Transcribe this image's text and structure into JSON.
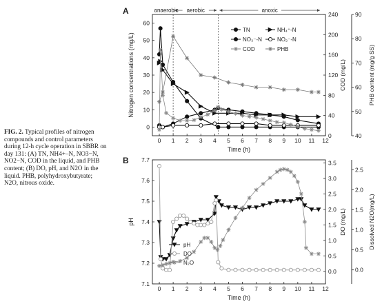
{
  "caption": {
    "label": "FIG. 2.",
    "text": "Typical profiles of nitrogen compounds and control parameters during 12-h cycle operation in SBBR on day 131: (A) TN, NH4+–N, NO3−N, NO2−N, COD in the liquid, and PHB content; (B) DO, pH, and N2O in the liquid. PHB, polyhydroxybutyrate; N2O, nitrous oxide."
  },
  "chart_data": [
    {
      "panel": "A",
      "type": "line",
      "phases": [
        {
          "name": "anaerobic",
          "x_start": 0,
          "x_end": 1
        },
        {
          "name": "aerobic",
          "x_start": 1,
          "x_end": 4.25
        },
        {
          "name": "anoxic",
          "x_start": 4.25,
          "x_end": 11.7
        }
      ],
      "xlabel": "Time (h)",
      "xlim": [
        -0.5,
        12
      ],
      "xticks": [
        0,
        1,
        2,
        3,
        4,
        5,
        6,
        7,
        8,
        9,
        10,
        11,
        12
      ],
      "y_left": {
        "label": "Nitrogen concentrations (mg/L)",
        "lim": [
          -5,
          65
        ],
        "ticks": [
          0,
          10,
          20,
          30,
          40,
          50,
          60
        ]
      },
      "y_right1": {
        "label": "COD (mg/L)",
        "lim": [
          0,
          240
        ],
        "ticks": [
          0,
          40,
          80,
          120,
          160,
          200,
          240
        ]
      },
      "y_right2": {
        "label": "PHB content (mg/g SS)",
        "lim": [
          40,
          90
        ],
        "ticks": [
          40,
          50,
          60,
          70,
          80,
          90
        ]
      },
      "legend": [
        "TN",
        "NH4+-N",
        "NO3-N",
        "NO2-N",
        "COD",
        "PHB"
      ],
      "series": [
        {
          "name": "TN",
          "axis": "left",
          "marker": "half",
          "x": [
            0,
            0.08,
            0.25,
            1,
            2,
            3,
            4.25,
            5,
            6,
            7,
            8,
            9,
            10,
            11.5
          ],
          "values": [
            42,
            57,
            36,
            26,
            15,
            5,
            0,
            0,
            0,
            0,
            0,
            0,
            0,
            0
          ]
        },
        {
          "name": "NH4+-N",
          "axis": "left",
          "marker": "tri",
          "x": [
            0,
            0.08,
            0.25,
            1,
            2,
            3,
            4,
            5,
            6,
            7,
            8,
            9,
            10,
            11.5
          ],
          "values": [
            37,
            38,
            33,
            25,
            20,
            12,
            8,
            8,
            8,
            7,
            7,
            7,
            6,
            6
          ]
        },
        {
          "name": "NO3-N",
          "axis": "left",
          "marker": "half",
          "x": [
            0,
            0.25,
            1,
            2,
            3,
            4,
            4.25,
            5,
            6,
            7,
            8,
            9,
            10,
            11.5
          ],
          "values": [
            1,
            0,
            2,
            6,
            8,
            10,
            11,
            10,
            9,
            8,
            7,
            6,
            4,
            2
          ]
        },
        {
          "name": "NO2-N",
          "axis": "left",
          "marker": "circle",
          "x": [
            0,
            0.25,
            1,
            2,
            3,
            4,
            5,
            6,
            7,
            8,
            9,
            10,
            11.5
          ],
          "values": [
            0,
            0,
            1,
            1,
            1,
            2,
            2,
            2,
            2,
            1,
            1,
            1,
            1
          ]
        },
        {
          "name": "COD",
          "axis": "right1",
          "marker": "star",
          "x": [
            0,
            0.08,
            0.25,
            0.5,
            1,
            1.5,
            2,
            2.5,
            3,
            3.5,
            4,
            4.25,
            4.5,
            5,
            5.5,
            6,
            6.5,
            7,
            7.5,
            8,
            8.5,
            9,
            9.5,
            10,
            10.5,
            11,
            11.5
          ],
          "values": [
            12,
            170,
            80,
            45,
            35,
            30,
            30,
            31,
            37,
            42,
            50,
            57,
            52,
            48,
            44,
            40,
            38,
            36,
            33,
            30,
            27,
            26,
            22,
            18,
            14,
            12,
            10
          ]
        },
        {
          "name": "PHB",
          "axis": "right2",
          "marker": "star",
          "x": [
            0,
            0.25,
            1,
            2,
            3,
            4,
            5,
            6,
            7,
            8,
            9,
            10,
            11,
            11.5
          ],
          "values": [
            54,
            58,
            81,
            72,
            65,
            64,
            62,
            61,
            60,
            60,
            59,
            59,
            58,
            58
          ]
        }
      ]
    },
    {
      "panel": "B",
      "type": "line",
      "xlabel": "Time (h)",
      "xlim": [
        -0.5,
        12
      ],
      "xticks": [
        0,
        1,
        2,
        3,
        4,
        5,
        6,
        7,
        8,
        9,
        10,
        11,
        12
      ],
      "y_left": {
        "label": "pH",
        "lim": [
          7.1,
          7.7
        ],
        "ticks": [
          7.1,
          7.2,
          7.3,
          7.4,
          7.5,
          7.6,
          7.7
        ]
      },
      "y_right1": {
        "label": "DO (mg/L)",
        "lim": [
          -0.4,
          3.6
        ],
        "ticks": [
          0.0,
          0.5,
          1.0,
          1.5,
          2.0,
          2.5,
          3.0,
          3.5
        ]
      },
      "y_right2": {
        "label": "Dissolved N2O(mg/L)",
        "lim": [
          -0.35,
          2.75
        ],
        "ticks": [
          0.0,
          0.5,
          1.0,
          1.5,
          2.0,
          2.5
        ]
      },
      "legend": [
        "pH",
        "DO",
        "N2O"
      ],
      "series": [
        {
          "name": "pH",
          "axis": "left",
          "marker": "tri-down",
          "x": [
            0,
            0.1,
            0.25,
            0.5,
            0.75,
            1,
            1.25,
            1.5,
            2,
            2.5,
            3,
            3.5,
            4,
            4.1,
            4.3,
            4.5,
            5,
            5.5,
            6,
            6.5,
            7,
            7.5,
            8,
            8.5,
            9,
            9.5,
            10,
            10.25,
            10.5,
            11,
            11.5
          ],
          "values": [
            7.4,
            7.23,
            7.22,
            7.22,
            7.24,
            7.32,
            7.36,
            7.38,
            7.39,
            7.4,
            7.41,
            7.41,
            7.44,
            7.52,
            7.5,
            7.48,
            7.47,
            7.47,
            7.46,
            7.47,
            7.47,
            7.48,
            7.49,
            7.5,
            7.5,
            7.5,
            7.51,
            7.51,
            7.48,
            7.46,
            7.46
          ]
        },
        {
          "name": "DO",
          "axis": "right1",
          "marker": "circle",
          "x": [
            0,
            0.1,
            0.25,
            0.5,
            0.75,
            1,
            1.25,
            1.5,
            1.75,
            2,
            2.25,
            2.5,
            2.75,
            3,
            3.25,
            3.5,
            3.75,
            4,
            4.1,
            4.25,
            4.5,
            5,
            5.5,
            6,
            6.5,
            7,
            7.5,
            8,
            8.5,
            9,
            9.5,
            10,
            10.5,
            11,
            11.5
          ],
          "values": [
            3.4,
            0.4,
            0.1,
            0.05,
            0.05,
            1.6,
            1.7,
            1.8,
            1.8,
            1.7,
            1.6,
            1.55,
            1.5,
            1.5,
            1.5,
            1.55,
            1.6,
            2.2,
            2.3,
            0.3,
            0.1,
            0.05,
            0.05,
            0.05,
            0.05,
            0.05,
            0.05,
            0.05,
            0.05,
            0.05,
            0.05,
            0.05,
            0.05,
            0.05,
            0.05
          ]
        },
        {
          "name": "N2O",
          "axis": "right2",
          "marker": "star",
          "x": [
            0,
            0.25,
            0.5,
            0.75,
            1,
            1.5,
            2,
            2.5,
            3,
            3.25,
            3.5,
            3.75,
            4,
            4.2,
            4.4,
            4.6,
            5,
            5.5,
            6,
            6.5,
            7,
            7.5,
            8,
            8.5,
            8.75,
            9,
            9.25,
            9.5,
            9.75,
            10,
            10.25,
            10.5,
            10.6,
            11,
            11.5
          ],
          "values": [
            0.1,
            0.12,
            0.15,
            0.17,
            0.2,
            0.22,
            0.3,
            0.45,
            0.7,
            0.8,
            0.8,
            0.7,
            0.55,
            0.5,
            0.6,
            0.75,
            1.0,
            1.3,
            1.55,
            1.8,
            2.0,
            2.15,
            2.3,
            2.45,
            2.5,
            2.52,
            2.5,
            2.45,
            2.35,
            2.2,
            1.9,
            1.2,
            0.55,
            0.4,
            0.4
          ]
        }
      ]
    }
  ]
}
